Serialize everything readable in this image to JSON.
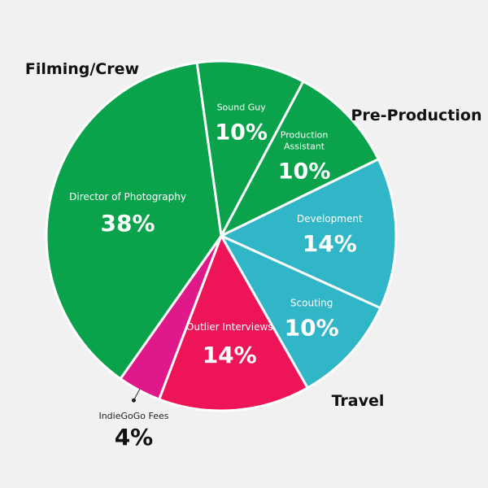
{
  "chart_data": {
    "type": "pie",
    "title": "",
    "slices": [
      {
        "label": "Sound Guy",
        "value": 10,
        "pct_label": "10%",
        "color": "#0aa24a"
      },
      {
        "label": "Production Assistant",
        "label_lines": [
          "Production",
          "Assistant"
        ],
        "value": 10,
        "pct_label": "10%",
        "color": "#0aa24a"
      },
      {
        "label": "Development",
        "value": 14,
        "pct_label": "14%",
        "color": "#31b6c8"
      },
      {
        "label": "Scouting",
        "value": 10,
        "pct_label": "10%",
        "color": "#31b6c8"
      },
      {
        "label": "Outlier Interviews",
        "value": 14,
        "pct_label": "14%",
        "color": "#ed1557"
      },
      {
        "label": "IndieGoGo Fees",
        "value": 4,
        "pct_label": "4%",
        "color": "#e0198a"
      },
      {
        "label": "Director of Photography",
        "value": 38,
        "pct_label": "38%",
        "color": "#0aa24a"
      }
    ],
    "groups": [
      {
        "label": "Filming/Crew",
        "color": "#111111"
      },
      {
        "label": "Pre-Production",
        "color": "#111111"
      },
      {
        "label": "Travel",
        "color": "#111111"
      }
    ],
    "colors": {
      "filming_crew": "#0aa24a",
      "pre_production": "#31b6c8",
      "travel": "#ed1557",
      "fees": "#e0198a",
      "background": "#f1f1f1"
    }
  }
}
